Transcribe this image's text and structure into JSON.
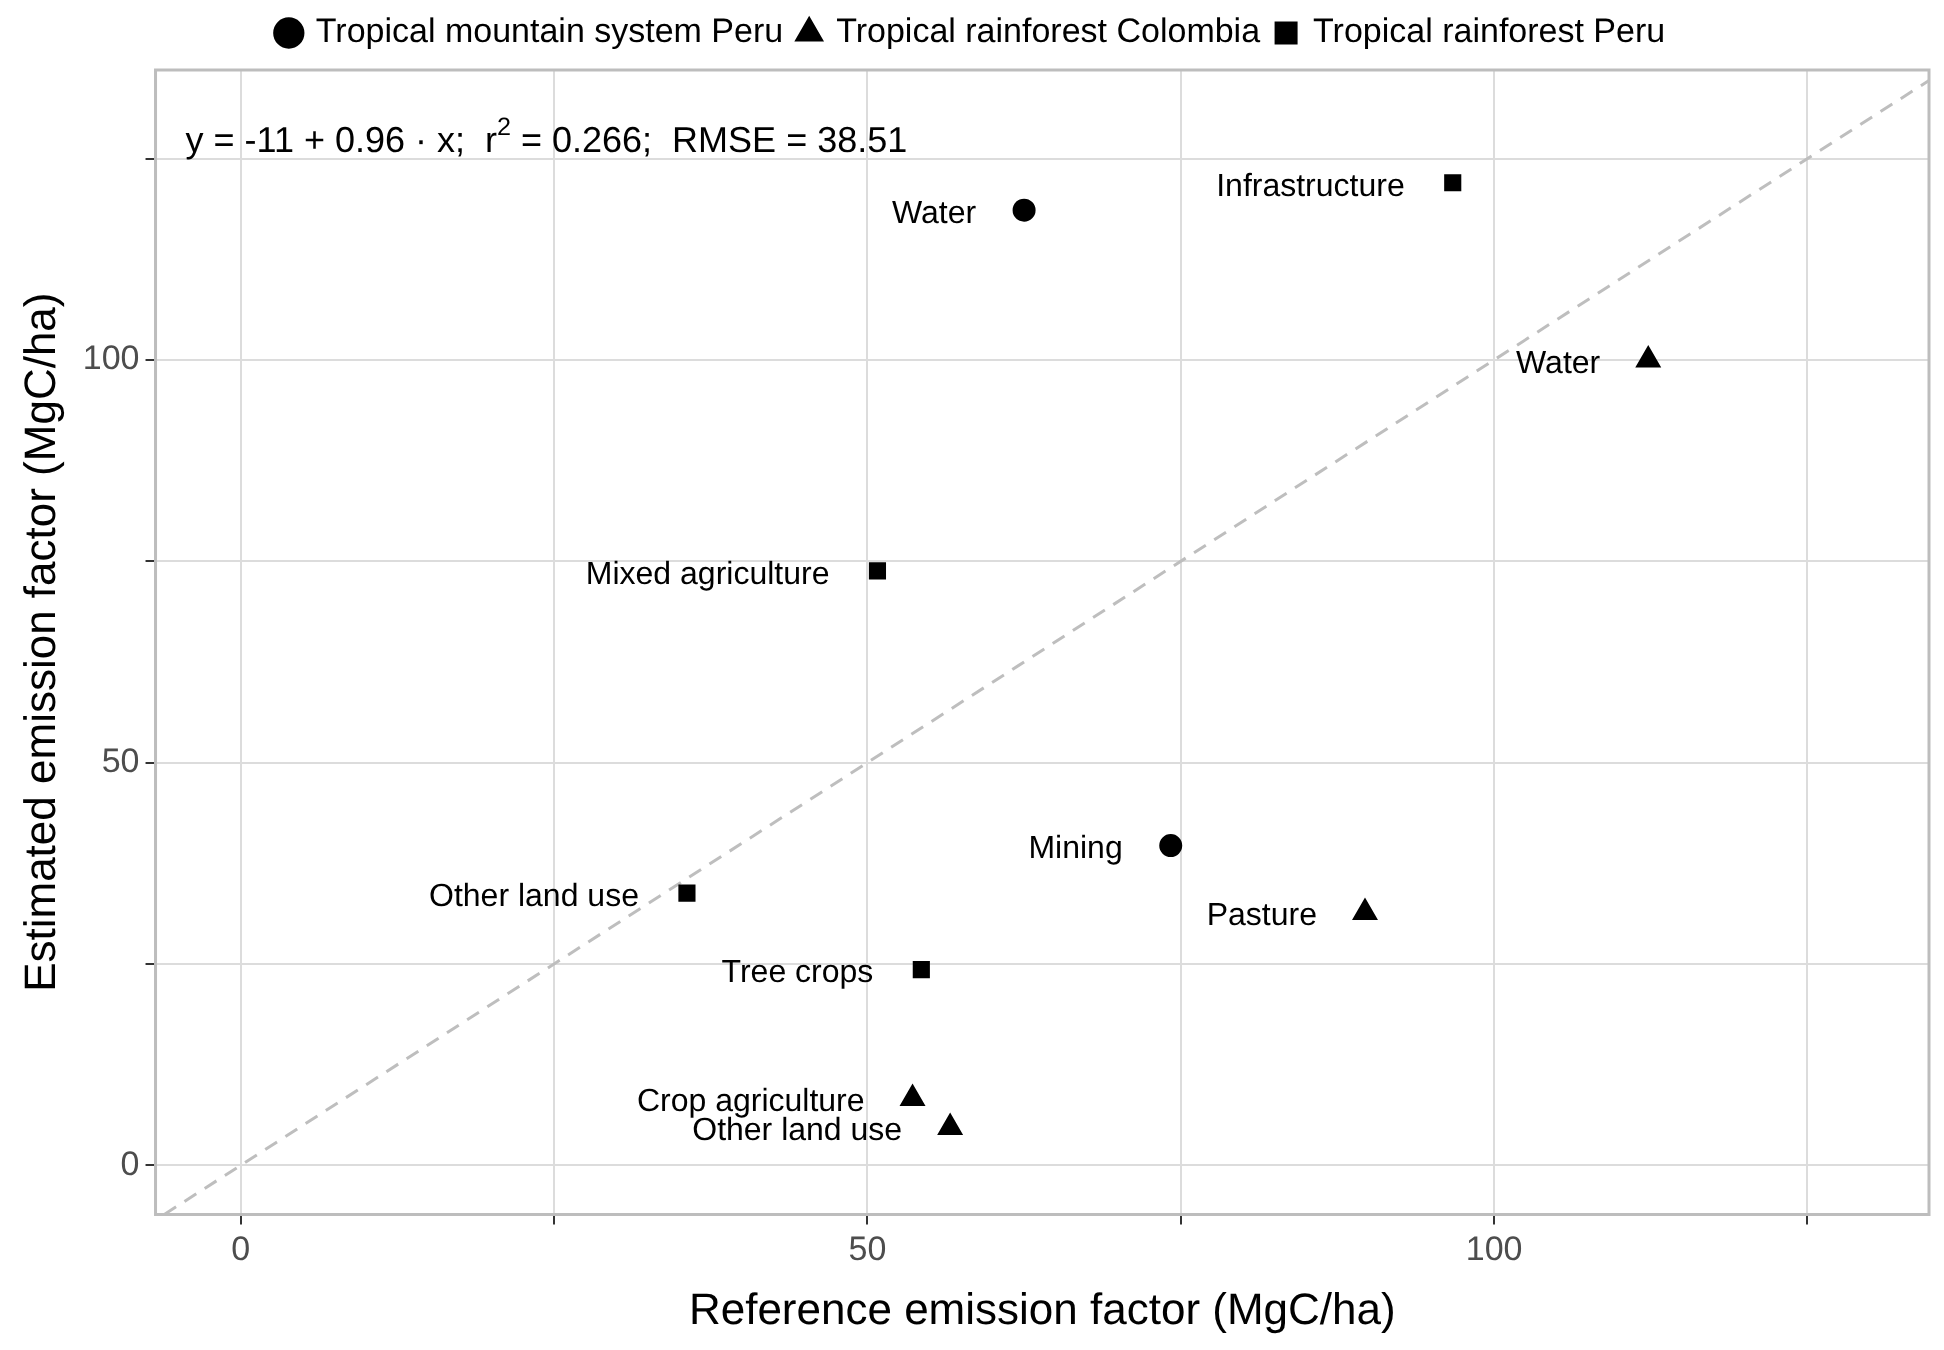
{
  "chart_data": {
    "type": "scatter",
    "xlabel": "Reference emission factor (MgC/ha)",
    "ylabel": "Estimated emission factor (MgC/ha)",
    "xlim": [
      -6.8,
      134.7
    ],
    "ylim": [
      -6.1,
      136
    ],
    "xticks": [
      0,
      {
        "value": 25,
        "label": null
      },
      50,
      {
        "value": 75,
        "label": null
      },
      100,
      {
        "value": 125,
        "label": null
      }
    ],
    "yticks": [
      0,
      {
        "value": 25,
        "label": null
      },
      50,
      {
        "value": 75,
        "label": null
      },
      100,
      {
        "value": 125,
        "label": null
      }
    ],
    "grid": true,
    "legend": "top",
    "series": [
      {
        "name": "Tropical mountain system Peru",
        "color": "#000000",
        "marker": "circle",
        "x": [
          62.5,
          74.2
        ],
        "values": [
          118.6,
          39.7
        ]
      },
      {
        "name": "Tropical rainforest Colombia",
        "color": "#000000",
        "marker": "triangle",
        "x": [
          112.3,
          89.7,
          53.6,
          56.6
        ],
        "values": [
          100,
          31.4,
          8.3,
          4.7
        ]
      },
      {
        "name": "Tropical rainforest Peru",
        "color": "#000000",
        "marker": "square",
        "x": [
          96.7,
          50.8,
          35.6,
          54.3
        ],
        "values": [
          122,
          73.8,
          33.8,
          24.3
        ]
      },
      {
        "type": "line",
        "color": "#bebebe",
        "line_style": "dashed",
        "marker": "none",
        "x": [
          -6.1,
          134.7
        ],
        "values": [
          -6.1,
          134.7
        ]
      }
    ],
    "annotations": [
      "y = -11 + 0.96 · x;  r$^{2}$ = 0.266;  RMSE = 38.51",
      {
        "text": "Water",
        "x": 62.5,
        "y": 118.6
      },
      {
        "text": "Mining",
        "x": 74.2,
        "y": 39.7
      },
      {
        "text": "Water",
        "x": 112.3,
        "y": 100
      },
      {
        "text": "Pasture",
        "x": 89.7,
        "y": 31.4
      },
      {
        "text": "Crop agriculture",
        "x": 53.6,
        "y": 8.3
      },
      {
        "text": "Other land use",
        "x": 56.6,
        "y": 4.7
      },
      {
        "text": "Infrastructure",
        "x": 96.7,
        "y": 122
      },
      {
        "text": "Mixed agriculture",
        "x": 50.8,
        "y": 73.8
      },
      {
        "text": "Other land use",
        "x": 35.6,
        "y": 33.8
      },
      {
        "text": "Tree crops",
        "x": 54.3,
        "y": 24.3
      }
    ]
  }
}
